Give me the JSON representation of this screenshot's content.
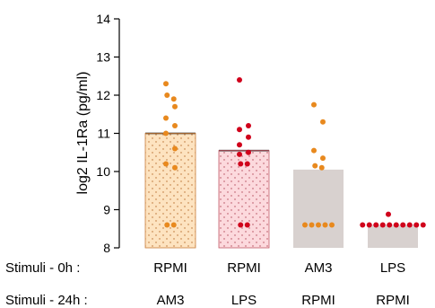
{
  "chart_data": {
    "type": "bar",
    "ylabel": "log2 IL-1Ra (pg/ml)",
    "ylim": [
      8,
      14
    ],
    "yticks": [
      8,
      9,
      10,
      11,
      12,
      13,
      14
    ],
    "grid": false,
    "row_labels": [
      "Stimuli -   0h :",
      "Stimuli - 24h :"
    ],
    "categories": [
      {
        "stim_0h": "RPMI",
        "stim_24h": "AM3"
      },
      {
        "stim_0h": "RPMI",
        "stim_24h": "LPS"
      },
      {
        "stim_0h": "AM3",
        "stim_24h": "RPMI"
      },
      {
        "stim_0h": "LPS",
        "stim_24h": "RPMI"
      }
    ],
    "bars": [
      {
        "value": 11.0,
        "fill": "#fde3c0",
        "stroke": "#c87d3a",
        "pattern": true,
        "dot_color": "#e8891e",
        "points": [
          12.3,
          12.0,
          11.9,
          11.7,
          11.4,
          11.2,
          11.0,
          10.6,
          10.2,
          10.1,
          8.6,
          8.6
        ]
      },
      {
        "value": 10.55,
        "fill": "#fcd9dd",
        "stroke": "#c05a66",
        "pattern": true,
        "dot_color": "#d0021b",
        "points": [
          12.4,
          11.2,
          11.1,
          10.9,
          10.7,
          10.5,
          10.45,
          10.2,
          10.2,
          8.6,
          8.6
        ]
      },
      {
        "value": 10.05,
        "fill": "#d8d1cf",
        "stroke": "#b0a8a6",
        "pattern": false,
        "dot_color": "#e8891e",
        "points": [
          11.75,
          11.3,
          10.55,
          10.35,
          10.15,
          10.1,
          8.6,
          8.6,
          8.6,
          8.6,
          8.6
        ]
      },
      {
        "value": 8.6,
        "fill": "#d8d1cf",
        "stroke": "#b0a8a6",
        "pattern": false,
        "dot_color": "#d0021b",
        "points": [
          8.88,
          8.6,
          8.6,
          8.6,
          8.6,
          8.6,
          8.6,
          8.6,
          8.6,
          8.6,
          8.6
        ]
      }
    ]
  }
}
